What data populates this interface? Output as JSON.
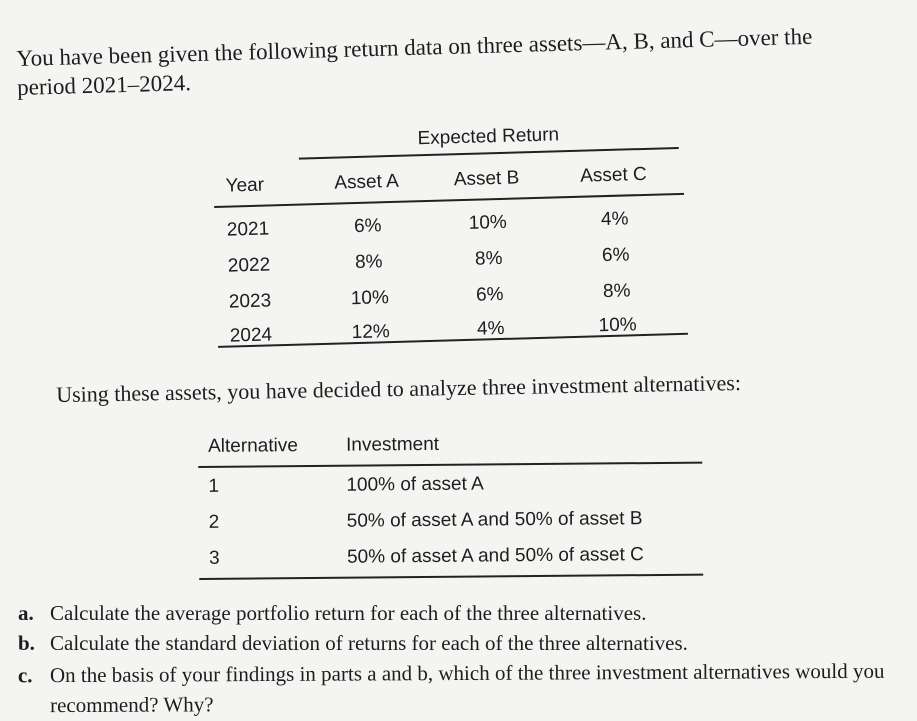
{
  "intro": {
    "line1": "You have been given the following return data on three assets—A, B, and C—over the",
    "line2": "period 2021–2024."
  },
  "returns_table": {
    "group_header": "Expected Return",
    "headers": [
      "Year",
      "Asset A",
      "Asset B",
      "Asset C"
    ],
    "rows": [
      [
        "2021",
        "6%",
        "10%",
        "4%"
      ],
      [
        "2022",
        "8%",
        "8%",
        "6%"
      ],
      [
        "2023",
        "10%",
        "6%",
        "8%"
      ],
      [
        "2024",
        "12%",
        "4%",
        "10%"
      ]
    ]
  },
  "using_text": "Using these assets, you have decided to analyze three investment alternatives:",
  "alternatives_table": {
    "headers": [
      "Alternative",
      "Investment"
    ],
    "rows": [
      [
        "1",
        "100% of asset A"
      ],
      [
        "2",
        "50% of asset A and 50% of asset B"
      ],
      [
        "3",
        "50% of asset A and 50% of asset C"
      ]
    ]
  },
  "questions": [
    {
      "letter": "a.",
      "text": "Calculate the average portfolio return for each of the three alternatives."
    },
    {
      "letter": "b.",
      "text": "Calculate the standard deviation of returns for each of the three alternatives."
    },
    {
      "letter": "c.",
      "text": "On the basis of your findings in parts a and b, which of the three investment alternatives would you recommend? Why?"
    }
  ]
}
